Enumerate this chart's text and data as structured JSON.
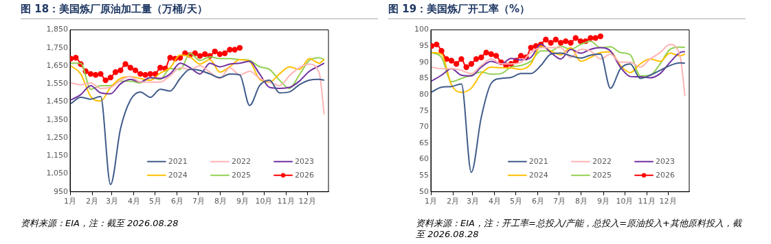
{
  "chart_data": [
    {
      "type": "line",
      "title": "图 18：美国炼厂原油加工量（万桶/天）",
      "grid": false,
      "legend": "bottom",
      "x": [
        "--01-02",
        "--01-16",
        "--01-30",
        "--02-13",
        "--02-27",
        "--03-13",
        "--03-27",
        "--04-10",
        "--04-24",
        "--05-08",
        "--05-22",
        "--06-05",
        "--06-19",
        "--07-03",
        "--07-17",
        "--07-31",
        "--08-14",
        "--08-28",
        "--09-11",
        "--09-25",
        "--10-09",
        "--10-23",
        "--11-06",
        "--11-20",
        "--12-04",
        "--12-18",
        "--12-25"
      ],
      "xlim": [
        "--01-01",
        "--12-31"
      ],
      "xticks": [
        {
          "value": "--01-01",
          "label": "1月"
        },
        {
          "value": "--02-01",
          "label": "2月"
        },
        {
          "value": "--03-01",
          "label": "3月"
        },
        {
          "value": "--04-01",
          "label": "4月"
        },
        {
          "value": "--05-01",
          "label": "5月"
        },
        {
          "value": "--06-01",
          "label": "6月"
        },
        {
          "value": "--07-01",
          "label": "7月"
        },
        {
          "value": "--08-01",
          "label": "8月"
        },
        {
          "value": "--09-01",
          "label": "9月"
        },
        {
          "value": "--10-01",
          "label": "10月"
        },
        {
          "value": "--11-01",
          "label": "11月"
        },
        {
          "value": "--12-01",
          "label": "12月"
        }
      ],
      "ylim": [
        950,
        1850
      ],
      "yticks": [
        {
          "value": 950,
          "label": "950"
        },
        {
          "value": 1050,
          "label": "1,050"
        },
        {
          "value": 1150,
          "label": "1,150"
        },
        {
          "value": 1250,
          "label": "1,250"
        },
        {
          "value": 1350,
          "label": "1,350"
        },
        {
          "value": 1450,
          "label": "1,450"
        },
        {
          "value": 1550,
          "label": "1,550"
        },
        {
          "value": 1650,
          "label": "1,650"
        },
        {
          "value": 1750,
          "label": "1,750"
        },
        {
          "value": 1850,
          "label": "1,850"
        }
      ],
      "series": [
        {
          "name": "2021",
          "color": "#3f5b8a",
          "values": [
            1440,
            1475,
            1465,
            1480,
            990,
            1300,
            1460,
            1505,
            1475,
            1520,
            1510,
            1580,
            1630,
            1625,
            1605,
            1585,
            1605,
            1600,
            1430,
            1540,
            1570,
            1500,
            1505,
            1545,
            1570,
            1575,
            1570
          ]
        },
        {
          "name": "2022",
          "color": "#ffb3b3",
          "values": [
            1555,
            1545,
            1555,
            1525,
            1530,
            1570,
            1590,
            1560,
            1560,
            1560,
            1595,
            1640,
            1630,
            1650,
            1615,
            1580,
            1640,
            1600,
            1620,
            1580,
            1560,
            1540,
            1595,
            1640,
            1660,
            1610,
            1380
          ]
        },
        {
          "name": "2023",
          "color": "#7030a0",
          "values": [
            1460,
            1490,
            1540,
            1500,
            1495,
            1550,
            1575,
            1560,
            1585,
            1580,
            1605,
            1665,
            1640,
            1605,
            1665,
            1645,
            1660,
            1665,
            1675,
            1605,
            1530,
            1525,
            1530,
            1565,
            1620,
            1650,
            1665
          ]
        },
        {
          "name": "2024",
          "color": "#ffc000",
          "values": [
            1650,
            1605,
            1480,
            1455,
            1530,
            1580,
            1590,
            1580,
            1570,
            1610,
            1640,
            1710,
            1700,
            1660,
            1685,
            1615,
            1645,
            1685,
            1675,
            1575,
            1560,
            1605,
            1645,
            1630,
            1690,
            1665,
            1685
          ]
        },
        {
          "name": "2025",
          "color": "#92d050",
          "values": [
            1665,
            1665,
            1520,
            1540,
            1540,
            1565,
            1565,
            1555,
            1585,
            1575,
            1635,
            1630,
            1720,
            1680,
            1700,
            1690,
            1690,
            1685,
            1680,
            1645,
            1630,
            1570,
            1525,
            1600,
            1680,
            1695,
            1685
          ]
        },
        {
          "name": "2026",
          "color": "#ff0000",
          "marker": "circle",
          "x": [
            "--01-02",
            "--01-09",
            "--01-16",
            "--01-23",
            "--01-30",
            "--02-06",
            "--02-13",
            "--02-20",
            "--02-27",
            "--03-06",
            "--03-13",
            "--03-20",
            "--03-27",
            "--04-03",
            "--04-10",
            "--04-17",
            "--04-24",
            "--05-01",
            "--05-08",
            "--05-15",
            "--05-22",
            "--05-29",
            "--06-05",
            "--06-12",
            "--06-19",
            "--06-26",
            "--07-03",
            "--07-10",
            "--07-17",
            "--07-24",
            "--07-31",
            "--08-07",
            "--08-14",
            "--08-21",
            "--08-28"
          ],
          "values": [
            1690,
            1695,
            1660,
            1620,
            1605,
            1600,
            1605,
            1570,
            1585,
            1615,
            1625,
            1660,
            1640,
            1625,
            1605,
            1600,
            1605,
            1605,
            1640,
            1635,
            1695,
            1690,
            1695,
            1720,
            1710,
            1720,
            1705,
            1715,
            1705,
            1730,
            1715,
            1720,
            1740,
            1740,
            1750
          ]
        }
      ],
      "annotations": [
        "资料来源：EIA，注：截至 2026.08.28"
      ]
    },
    {
      "type": "line",
      "title": "图 19：美国炼厂开工率（%）",
      "grid": false,
      "legend": "bottom",
      "x": [
        "--01-02",
        "--01-16",
        "--01-30",
        "--02-13",
        "--02-27",
        "--03-13",
        "--03-27",
        "--04-10",
        "--04-24",
        "--05-08",
        "--05-22",
        "--06-05",
        "--06-19",
        "--07-03",
        "--07-17",
        "--07-31",
        "--08-14",
        "--08-28",
        "--09-11",
        "--09-25",
        "--10-09",
        "--10-23",
        "--11-06",
        "--11-20",
        "--12-04",
        "--12-18",
        "--12-25"
      ],
      "xlim": [
        "--01-01",
        "--12-31"
      ],
      "xticks": [
        {
          "value": "--01-01",
          "label": "1月"
        },
        {
          "value": "--02-01",
          "label": "2月"
        },
        {
          "value": "--03-01",
          "label": "3月"
        },
        {
          "value": "--04-01",
          "label": "4月"
        },
        {
          "value": "--05-01",
          "label": "5月"
        },
        {
          "value": "--06-01",
          "label": "6月"
        },
        {
          "value": "--07-01",
          "label": "7月"
        },
        {
          "value": "--08-01",
          "label": "8月"
        },
        {
          "value": "--09-01",
          "label": "9月"
        },
        {
          "value": "--10-01",
          "label": "10月"
        },
        {
          "value": "--11-01",
          "label": "11月"
        },
        {
          "value": "--12-01",
          "label": "12月"
        }
      ],
      "ylim": [
        50,
        100
      ],
      "yticks": [
        50,
        55,
        60,
        65,
        70,
        75,
        80,
        85,
        90,
        95,
        100
      ],
      "series": [
        {
          "name": "2021",
          "color": "#3f5b8a",
          "values": [
            80.8,
            82.3,
            82.5,
            83.3,
            56,
            73,
            83.5,
            85,
            85.3,
            86.5,
            86.5,
            89,
            92.5,
            92.8,
            92,
            91.3,
            92.2,
            92.5,
            82,
            88,
            89.5,
            85,
            86,
            87.5,
            89,
            89.8,
            89.7
          ]
        },
        {
          "name": "2022",
          "color": "#ffb3b3",
          "values": [
            88.5,
            88,
            88,
            87.5,
            86.5,
            89,
            91,
            89.5,
            89.5,
            90,
            93,
            94.5,
            94.5,
            94.5,
            91.5,
            94,
            93.5,
            91,
            92.5,
            90,
            90,
            88.5,
            91,
            93,
            95.5,
            92,
            79.5
          ]
        },
        {
          "name": "2023",
          "color": "#7030a0",
          "values": [
            84.2,
            86,
            88,
            86,
            85.8,
            88.5,
            90.3,
            89.5,
            91.2,
            90.7,
            91.5,
            95.5,
            93,
            91,
            94,
            92.8,
            94,
            94.5,
            93.5,
            88.5,
            85.6,
            85.5,
            85.2,
            86.5,
            90,
            93,
            93.3
          ]
        },
        {
          "name": "2024",
          "color": "#ffc000",
          "values": [
            93,
            92.5,
            83,
            80.7,
            82,
            86.5,
            88.5,
            88.3,
            88.2,
            87.8,
            89.5,
            95,
            93.5,
            92.3,
            94.5,
            90.3,
            91.5,
            93,
            93.2,
            89,
            86.8,
            89.5,
            91,
            90.3,
            92.8,
            92,
            92.5
          ]
        },
        {
          "name": "2025",
          "color": "#92d050",
          "values": [
            93,
            91.5,
            84,
            85,
            86,
            87,
            86.3,
            86.5,
            88.5,
            89,
            90.3,
            93.5,
            93.5,
            95,
            94,
            95.5,
            96.5,
            94.5,
            94.8,
            93,
            92.3,
            85.8,
            86,
            89.5,
            94,
            94.7,
            94.6
          ]
        },
        {
          "name": "2026",
          "color": "#ff0000",
          "marker": "circle",
          "x": [
            "--01-02",
            "--01-09",
            "--01-16",
            "--01-23",
            "--01-30",
            "--02-06",
            "--02-13",
            "--02-20",
            "--02-27",
            "--03-06",
            "--03-13",
            "--03-20",
            "--03-27",
            "--04-03",
            "--04-10",
            "--04-17",
            "--04-24",
            "--05-01",
            "--05-08",
            "--05-15",
            "--05-22",
            "--05-29",
            "--06-05",
            "--06-12",
            "--06-19",
            "--06-26",
            "--07-03",
            "--07-10",
            "--07-17",
            "--07-24",
            "--07-31",
            "--08-07",
            "--08-14",
            "--08-21",
            "--08-28"
          ],
          "values": [
            95,
            95.5,
            93.5,
            91,
            90.5,
            89.5,
            91,
            88.5,
            89.5,
            91,
            91.5,
            93,
            92.5,
            92,
            90,
            89,
            89.5,
            90.5,
            92,
            91.5,
            94.5,
            95,
            95.5,
            97,
            96,
            97,
            96,
            96.5,
            96,
            97.5,
            96.5,
            96.5,
            97.5,
            97.5,
            98
          ]
        }
      ],
      "annotations": [
        "资料来源：EIA，注：开工率=总投入/产能，总投入=原油投入+其他原料投入，截至 2026.08.28"
      ]
    }
  ]
}
